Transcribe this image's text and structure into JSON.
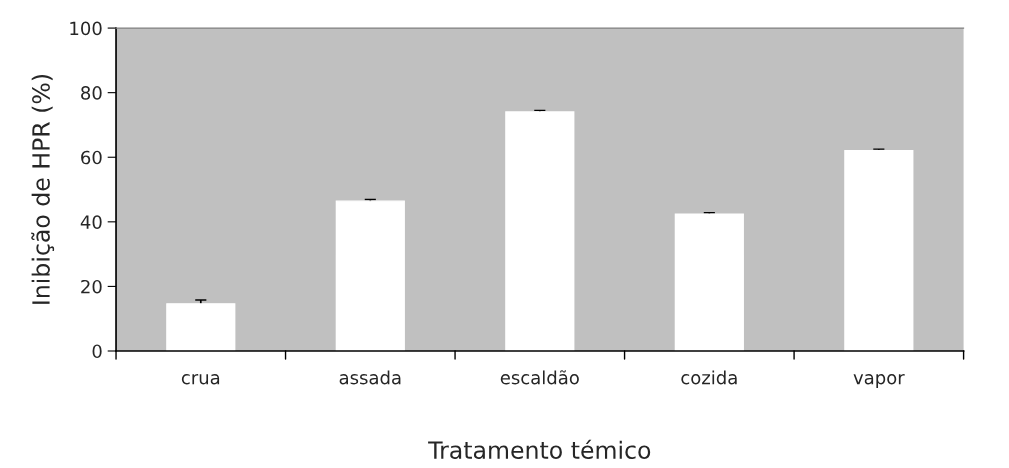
{
  "chart_data": {
    "type": "bar",
    "xlabel": "Tratamento témico",
    "ylabel": "Inibição de HPR (%)",
    "categories": [
      "crua",
      "assada",
      "escaldão",
      "cozida",
      "vapor"
    ],
    "values": [
      14.6,
      46.4,
      74.0,
      42.4,
      62.0
    ],
    "errors": [
      1.2,
      0.5,
      0.5,
      0.4,
      0.5
    ],
    "color": "#ffffff",
    "ylim": [
      0,
      100
    ],
    "yticks": [
      0,
      20,
      40,
      60,
      80,
      100
    ],
    "grid": false,
    "legend": false
  }
}
